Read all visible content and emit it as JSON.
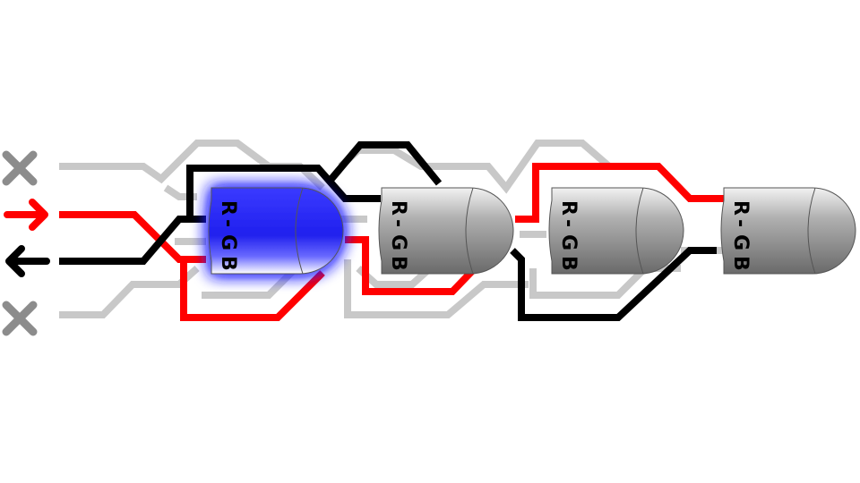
{
  "level": {
    "inputs": [
      {
        "name": "input-1",
        "state": "off",
        "icon": "x-icon",
        "color": "#8c8c8c"
      },
      {
        "name": "input-2",
        "state": "in",
        "icon": "arrow-right-icon",
        "color": "#ff0000"
      },
      {
        "name": "input-3",
        "state": "out",
        "icon": "arrow-left-icon",
        "color": "#000000"
      },
      {
        "name": "input-4",
        "state": "off",
        "icon": "x-icon",
        "color": "#8c8c8c"
      }
    ],
    "gates": [
      {
        "label_r": "R",
        "label_dash": "-",
        "label_g": "G",
        "label_b": "B",
        "state": "selected",
        "color": "#1a1aff"
      },
      {
        "label_r": "R",
        "label_dash": "-",
        "label_g": "G",
        "label_b": "B",
        "state": "idle",
        "color": "#8a8a8a"
      },
      {
        "label_r": "R",
        "label_dash": "-",
        "label_g": "G",
        "label_b": "B",
        "state": "idle",
        "color": "#8a8a8a"
      },
      {
        "label_r": "R",
        "label_dash": "-",
        "label_g": "G",
        "label_b": "B",
        "state": "idle",
        "color": "#8a8a8a"
      }
    ]
  },
  "colors": {
    "red_wire": "#ff0000",
    "black_wire": "#000000",
    "gray_wire": "#c8c8c8",
    "selected_gate": "#1a1aff",
    "idle_gate": "#8a8a8a"
  }
}
